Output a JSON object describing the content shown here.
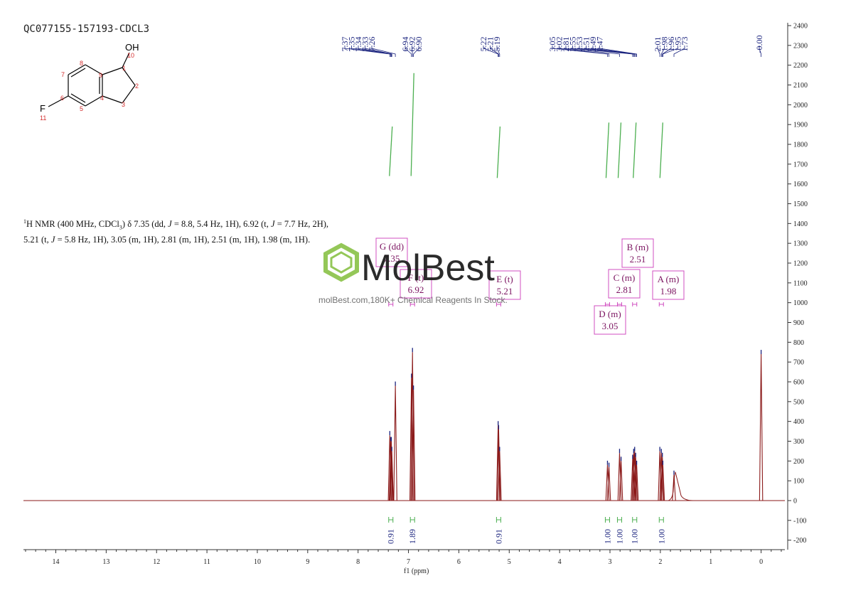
{
  "sample_id": "QC077155-157193-CDCL3",
  "molecule": {
    "atom_labels": [
      {
        "id": "O",
        "symbol": "OH",
        "number": "10"
      },
      {
        "id": "C1",
        "number": "1"
      },
      {
        "id": "C2",
        "number": "2"
      },
      {
        "id": "C3",
        "number": "3"
      },
      {
        "id": "C4",
        "number": "4"
      },
      {
        "id": "C5",
        "number": "5"
      },
      {
        "id": "C6",
        "number": "6"
      },
      {
        "id": "C7",
        "number": "7"
      },
      {
        "id": "C8",
        "number": "8"
      },
      {
        "id": "C9",
        "number": "9"
      },
      {
        "id": "F",
        "symbol": "F",
        "number": "11"
      }
    ]
  },
  "summary": {
    "nucleus": "1",
    "line1": "H NMR (400 MHz, CDCl",
    "sub": "3",
    "line1_rest": ") δ 7.35 (dd, ",
    "j1_label": "J",
    "j1_rest": " = 8.8, 5.4 Hz, 1H), 6.92 (t, ",
    "j2_label": "J",
    "j2_rest": " = 7.7 Hz, 2H), 5.21 (t, ",
    "j3_label": "J",
    "j3_rest": " = 5.8 Hz, 1H), 3.05 (m, 1H), 2.81 (m, 1H), 2.51 (m, 1H), 1.98 (m, 1H)."
  },
  "watermark": {
    "brand": "MolBest",
    "tagline": "molBest.com,180K+ Chemical Reagents In Stock.",
    "brand_color": "#8bc34a"
  },
  "colors": {
    "spectrum": "#8b1a1a",
    "peak_labels": "#1a237e",
    "integral_curves": "#4caf50",
    "multiplet_boxes": "#d04fc0"
  },
  "chart_data": {
    "type": "line",
    "xlabel": "f1 (ppm)",
    "xlim": [
      14.7,
      -0.5
    ],
    "xticks": [
      "14",
      "13",
      "12",
      "11",
      "10",
      "9",
      "8",
      "7",
      "6",
      "5",
      "4",
      "3",
      "2",
      "1",
      "0"
    ],
    "ylim": [
      -250,
      2450
    ],
    "yticks": [
      "2400",
      "2300",
      "2200",
      "2100",
      "2000",
      "1900",
      "1800",
      "1700",
      "1600",
      "1500",
      "1400",
      "1300",
      "1200",
      "1100",
      "1000",
      "900",
      "800",
      "700",
      "600",
      "500",
      "400",
      "300",
      "200",
      "100",
      "0",
      "-100",
      "-200"
    ],
    "peaks": [
      {
        "ppm": 7.37,
        "height": 330
      },
      {
        "ppm": 7.35,
        "height": 300
      },
      {
        "ppm": 7.34,
        "height": 300
      },
      {
        "ppm": 7.33,
        "height": 250
      },
      {
        "ppm": 7.26,
        "height": 580
      },
      {
        "ppm": 6.94,
        "height": 620
      },
      {
        "ppm": 6.92,
        "height": 750
      },
      {
        "ppm": 6.9,
        "height": 560
      },
      {
        "ppm": 5.22,
        "height": 380
      },
      {
        "ppm": 5.21,
        "height": 360
      },
      {
        "ppm": 5.19,
        "height": 250
      },
      {
        "ppm": 3.05,
        "height": 180
      },
      {
        "ppm": 3.02,
        "height": 170
      },
      {
        "ppm": 2.81,
        "height": 240
      },
      {
        "ppm": 2.78,
        "height": 200
      },
      {
        "ppm": 2.55,
        "height": 210
      },
      {
        "ppm": 2.53,
        "height": 240
      },
      {
        "ppm": 2.51,
        "height": 250
      },
      {
        "ppm": 2.49,
        "height": 220
      },
      {
        "ppm": 2.47,
        "height": 180
      },
      {
        "ppm": 2.01,
        "height": 250
      },
      {
        "ppm": 1.98,
        "height": 240
      },
      {
        "ppm": 1.96,
        "height": 220
      },
      {
        "ppm": 1.95,
        "height": 180
      },
      {
        "ppm": 1.73,
        "height": 130
      },
      {
        "ppm": 0.0,
        "height": 740
      }
    ],
    "peak_label_groups": [
      {
        "labels": [
          "7.37",
          "7.35",
          "7.34",
          "7.33",
          "7.26"
        ]
      },
      {
        "labels": [
          "6.94",
          "6.92",
          "6.90"
        ]
      },
      {
        "labels": [
          "5.22",
          "5.21",
          "5.19"
        ]
      },
      {
        "labels": [
          "3.05",
          "3.02",
          "2.81",
          "2.55",
          "2.53",
          "2.51",
          "2.49",
          "2.47"
        ]
      },
      {
        "labels": [
          "2.01",
          "1.98",
          "1.96",
          "1.95",
          "1.73"
        ]
      },
      {
        "labels": [
          "-0.00"
        ]
      }
    ],
    "integrals": [
      {
        "ppm": 7.35,
        "value": "0.91"
      },
      {
        "ppm": 6.92,
        "value": "1.89"
      },
      {
        "ppm": 5.21,
        "value": "0.91"
      },
      {
        "ppm": 3.05,
        "value": "1.00"
      },
      {
        "ppm": 2.81,
        "value": "1.00"
      },
      {
        "ppm": 2.51,
        "value": "1.00"
      },
      {
        "ppm": 1.98,
        "value": "1.00"
      }
    ],
    "multiplets": [
      {
        "ppm": 7.35,
        "label": "G (dd)",
        "shift": "7.35"
      },
      {
        "ppm": 6.92,
        "label": "F (t)",
        "shift": "6.92"
      },
      {
        "ppm": 5.21,
        "label": "E (t)",
        "shift": "5.21"
      },
      {
        "ppm": 3.05,
        "label": "D (m)",
        "shift": "3.05"
      },
      {
        "ppm": 2.81,
        "label": "C (m)",
        "shift": "2.81"
      },
      {
        "ppm": 2.51,
        "label": "B (m)",
        "shift": "2.51"
      },
      {
        "ppm": 1.98,
        "label": "A (m)",
        "shift": "1.98"
      }
    ]
  }
}
